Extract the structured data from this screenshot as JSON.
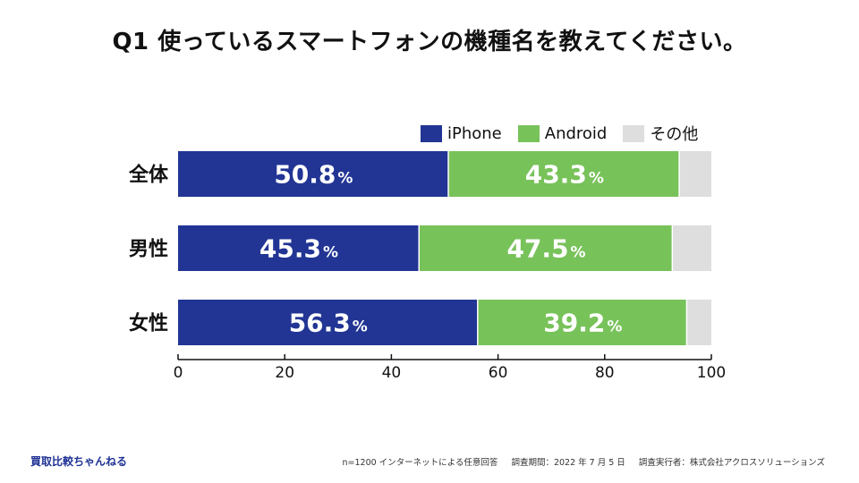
{
  "title": "Q1 使っているスマートフォンの機種名を教えてください。",
  "legend": [
    {
      "label": "iPhone",
      "color": "#223594"
    },
    {
      "label": "Android",
      "color": "#78c25a"
    },
    {
      "label": "その他",
      "color": "#dedede"
    }
  ],
  "chart_data": {
    "type": "bar",
    "orientation": "horizontal",
    "stacked": true,
    "categories": [
      "全体",
      "男性",
      "女性"
    ],
    "series": [
      {
        "name": "iPhone",
        "values": [
          50.8,
          45.3,
          56.3
        ],
        "color": "#223594"
      },
      {
        "name": "Android",
        "values": [
          43.3,
          47.5,
          39.2
        ],
        "color": "#78c25a"
      },
      {
        "name": "その他",
        "values": [
          5.9,
          7.2,
          4.5
        ],
        "color": "#dedede"
      }
    ],
    "value_suffix": "%",
    "xlim": [
      0,
      100
    ],
    "xticks": [
      "0",
      "20",
      "40",
      "60",
      "80",
      "100"
    ],
    "xtick_values": [
      0,
      20,
      40,
      60,
      80,
      100
    ]
  },
  "brand": "買取比較ちゃんねる",
  "footnote": {
    "sample": "n=1200 インターネットによる任意回答",
    "period": "調査期間：2022 年 7 月 5 日",
    "org": "調査実行者：株式会社アクロスソリューションズ"
  }
}
